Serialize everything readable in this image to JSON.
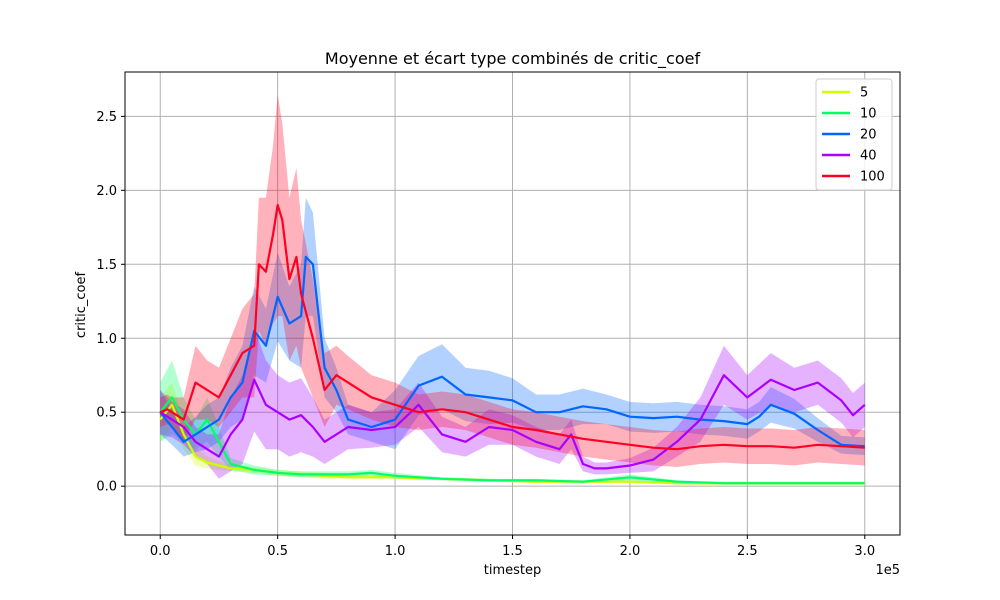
{
  "chart_data": {
    "type": "line",
    "title": "Moyenne et écart type combinés de critic_coef",
    "xlabel": "timestep",
    "ylabel": "critic_coef",
    "x_offset_label": "1e5",
    "xlim": [
      -15000,
      315000
    ],
    "ylim": [
      -0.33,
      2.8
    ],
    "x_ticks": [
      0,
      50000,
      100000,
      150000,
      200000,
      250000,
      300000
    ],
    "x_tick_labels": [
      "0.0",
      "0.5",
      "1.0",
      "1.5",
      "2.0",
      "2.5",
      "3.0"
    ],
    "y_ticks": [
      0,
      0.5,
      1.0,
      1.5,
      2.0,
      2.5
    ],
    "y_tick_labels": [
      "0.0",
      "0.5",
      "1.0",
      "1.5",
      "2.0",
      "2.5"
    ],
    "grid": true,
    "legend_position": "top-right",
    "series": [
      {
        "name": "5",
        "color": "#ccff00",
        "x": [
          0,
          5000,
          10000,
          15000,
          20000,
          25000,
          30000,
          40000,
          50000,
          60000,
          70000,
          80000,
          90000,
          100000,
          120000,
          140000,
          160000,
          180000,
          200000,
          220000,
          240000,
          260000,
          280000,
          300000
        ],
        "mean": [
          0.45,
          0.55,
          0.35,
          0.2,
          0.16,
          0.14,
          0.12,
          0.11,
          0.09,
          0.08,
          0.07,
          0.06,
          0.06,
          0.06,
          0.05,
          0.04,
          0.03,
          0.03,
          0.03,
          0.02,
          0.02,
          0.02,
          0.02,
          0.02
        ],
        "std": [
          0.15,
          0.15,
          0.1,
          0.06,
          0.04,
          0.03,
          0.02,
          0.02,
          0.02,
          0.02,
          0.02,
          0.01,
          0.01,
          0.01,
          0.01,
          0.01,
          0.01,
          0.01,
          0.01,
          0.01,
          0.01,
          0.01,
          0.01,
          0.01
        ]
      },
      {
        "name": "10",
        "color": "#00ff66",
        "x": [
          0,
          5000,
          10000,
          15000,
          20000,
          25000,
          30000,
          40000,
          50000,
          60000,
          70000,
          80000,
          90000,
          100000,
          120000,
          140000,
          160000,
          180000,
          200000,
          220000,
          240000,
          260000,
          280000,
          300000
        ],
        "mean": [
          0.5,
          0.6,
          0.45,
          0.35,
          0.45,
          0.3,
          0.15,
          0.11,
          0.09,
          0.08,
          0.08,
          0.08,
          0.09,
          0.07,
          0.05,
          0.04,
          0.04,
          0.03,
          0.06,
          0.03,
          0.02,
          0.02,
          0.02,
          0.02
        ],
        "std": [
          0.2,
          0.25,
          0.15,
          0.1,
          0.15,
          0.1,
          0.04,
          0.03,
          0.02,
          0.02,
          0.02,
          0.02,
          0.02,
          0.02,
          0.01,
          0.01,
          0.01,
          0.01,
          0.02,
          0.01,
          0.01,
          0.01,
          0.01,
          0.01
        ]
      },
      {
        "name": "20",
        "color": "#0066ff",
        "x": [
          0,
          5000,
          10000,
          15000,
          20000,
          25000,
          30000,
          35000,
          40000,
          45000,
          50000,
          55000,
          60000,
          62000,
          65000,
          70000,
          75000,
          80000,
          90000,
          100000,
          110000,
          120000,
          130000,
          140000,
          150000,
          160000,
          170000,
          180000,
          190000,
          200000,
          210000,
          220000,
          230000,
          240000,
          250000,
          255000,
          260000,
          270000,
          280000,
          290000,
          300000
        ],
        "mean": [
          0.5,
          0.4,
          0.3,
          0.35,
          0.4,
          0.45,
          0.6,
          0.7,
          1.05,
          0.95,
          1.28,
          1.1,
          1.15,
          1.55,
          1.5,
          0.8,
          0.65,
          0.45,
          0.4,
          0.45,
          0.68,
          0.74,
          0.62,
          0.6,
          0.58,
          0.5,
          0.5,
          0.54,
          0.52,
          0.47,
          0.46,
          0.47,
          0.45,
          0.44,
          0.42,
          0.47,
          0.55,
          0.49,
          0.38,
          0.28,
          0.27
        ],
        "std": [
          0.15,
          0.12,
          0.1,
          0.12,
          0.15,
          0.15,
          0.2,
          0.25,
          0.3,
          0.25,
          0.3,
          0.25,
          0.35,
          0.4,
          0.35,
          0.2,
          0.15,
          0.1,
          0.1,
          0.2,
          0.2,
          0.22,
          0.18,
          0.18,
          0.15,
          0.12,
          0.12,
          0.12,
          0.1,
          0.1,
          0.1,
          0.1,
          0.1,
          0.1,
          0.1,
          0.1,
          0.12,
          0.1,
          0.08,
          0.06,
          0.06
        ]
      },
      {
        "name": "40",
        "color": "#aa00ff",
        "x": [
          0,
          5000,
          10000,
          15000,
          20000,
          25000,
          30000,
          35000,
          40000,
          45000,
          50000,
          55000,
          60000,
          65000,
          70000,
          75000,
          80000,
          90000,
          100000,
          110000,
          120000,
          130000,
          140000,
          150000,
          160000,
          170000,
          175000,
          180000,
          185000,
          190000,
          200000,
          210000,
          220000,
          230000,
          240000,
          250000,
          260000,
          270000,
          280000,
          290000,
          295000,
          300000
        ],
        "mean": [
          0.5,
          0.45,
          0.4,
          0.3,
          0.25,
          0.2,
          0.35,
          0.45,
          0.72,
          0.55,
          0.5,
          0.45,
          0.48,
          0.4,
          0.3,
          0.35,
          0.4,
          0.38,
          0.4,
          0.55,
          0.35,
          0.3,
          0.4,
          0.38,
          0.3,
          0.25,
          0.35,
          0.15,
          0.12,
          0.12,
          0.14,
          0.18,
          0.3,
          0.45,
          0.75,
          0.6,
          0.72,
          0.65,
          0.7,
          0.58,
          0.48,
          0.55
        ],
        "std": [
          0.15,
          0.12,
          0.12,
          0.1,
          0.1,
          0.15,
          0.25,
          0.3,
          0.35,
          0.3,
          0.25,
          0.25,
          0.25,
          0.2,
          0.15,
          0.15,
          0.15,
          0.12,
          0.12,
          0.15,
          0.12,
          0.1,
          0.12,
          0.1,
          0.1,
          0.1,
          0.1,
          0.05,
          0.04,
          0.04,
          0.05,
          0.08,
          0.1,
          0.15,
          0.2,
          0.15,
          0.18,
          0.15,
          0.15,
          0.15,
          0.15,
          0.15
        ]
      },
      {
        "name": "100",
        "color": "#ff0022",
        "x": [
          0,
          3000,
          5000,
          10000,
          15000,
          20000,
          25000,
          30000,
          35000,
          40000,
          42000,
          45000,
          48000,
          50000,
          52000,
          55000,
          58000,
          60000,
          65000,
          70000,
          75000,
          80000,
          90000,
          100000,
          110000,
          120000,
          130000,
          140000,
          150000,
          160000,
          170000,
          180000,
          190000,
          200000,
          210000,
          220000,
          230000,
          240000,
          250000,
          260000,
          270000,
          280000,
          290000,
          300000
        ],
        "mean": [
          0.5,
          0.52,
          0.5,
          0.45,
          0.7,
          0.65,
          0.6,
          0.75,
          0.9,
          0.95,
          1.5,
          1.45,
          1.7,
          1.9,
          1.8,
          1.4,
          1.55,
          1.3,
          1.0,
          0.65,
          0.75,
          0.7,
          0.6,
          0.55,
          0.5,
          0.52,
          0.5,
          0.45,
          0.4,
          0.38,
          0.35,
          0.32,
          0.3,
          0.28,
          0.26,
          0.25,
          0.27,
          0.28,
          0.27,
          0.27,
          0.26,
          0.28,
          0.27,
          0.26
        ],
        "std": [
          0.1,
          0.1,
          0.1,
          0.15,
          0.25,
          0.2,
          0.2,
          0.25,
          0.3,
          0.35,
          0.45,
          0.5,
          0.6,
          0.75,
          0.65,
          0.55,
          0.6,
          0.5,
          0.4,
          0.25,
          0.2,
          0.18,
          0.15,
          0.15,
          0.12,
          0.12,
          0.12,
          0.12,
          0.12,
          0.12,
          0.12,
          0.12,
          0.12,
          0.12,
          0.12,
          0.12,
          0.12,
          0.12,
          0.12,
          0.12,
          0.12,
          0.12,
          0.12,
          0.12
        ]
      }
    ]
  }
}
